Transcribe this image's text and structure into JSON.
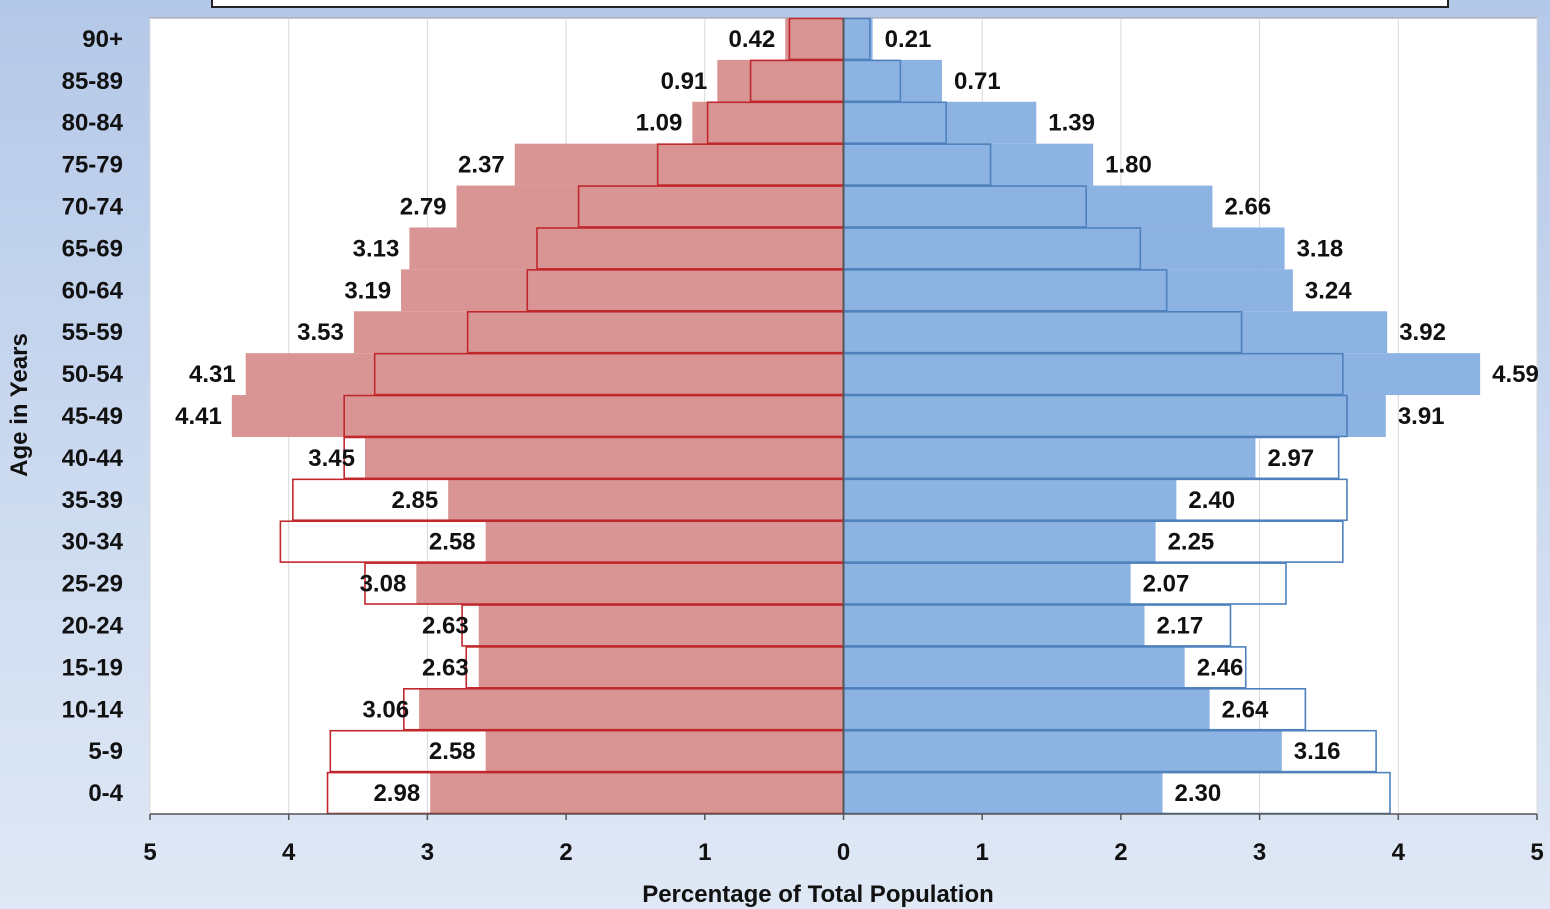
{
  "chart_data": {
    "type": "bar",
    "title": "",
    "ylabel": "Age in Years",
    "xlabel": "Percentage of Total Population",
    "xlim": [
      -5,
      5
    ],
    "x_ticks": [
      -5,
      -4,
      -3,
      -2,
      -1,
      0,
      1,
      2,
      3,
      4,
      5
    ],
    "x_tick_labels": [
      "5",
      "4",
      "3",
      "2",
      "1",
      "0",
      "1",
      "2",
      "3",
      "4",
      "5"
    ],
    "grid": true,
    "legend": "none",
    "categories": [
      "90+",
      "85-89",
      "80-84",
      "75-79",
      "70-74",
      "65-69",
      "60-64",
      "55-59",
      "50-54",
      "45-49",
      "40-44",
      "35-39",
      "30-34",
      "25-29",
      "20-24",
      "15-19",
      "10-14",
      "5-9",
      "0-4"
    ],
    "series": [
      {
        "side": "left",
        "color": "#d99594",
        "outline_color": "#c0282d",
        "values": [
          0.42,
          0.91,
          1.09,
          2.37,
          2.79,
          3.13,
          3.19,
          3.53,
          4.31,
          4.41,
          3.45,
          2.85,
          2.58,
          3.08,
          2.63,
          2.63,
          3.06,
          2.58,
          2.98
        ],
        "value_labels": [
          "0.42",
          "0.91",
          "1.09",
          "2.37",
          "2.79",
          "3.13",
          "3.19",
          "3.53",
          "4.31",
          "4.41",
          "3.45",
          "2.85",
          "2.58",
          "3.08",
          "2.63",
          "2.63",
          "3.06",
          "2.58",
          "2.98"
        ],
        "outline_values": [
          0.39,
          0.67,
          0.98,
          1.34,
          1.91,
          2.21,
          2.28,
          2.71,
          3.38,
          3.6,
          3.6,
          3.97,
          4.06,
          3.45,
          2.75,
          2.72,
          3.17,
          3.7,
          3.72
        ]
      },
      {
        "side": "right",
        "color": "#8db3e2",
        "outline_color": "#4f81bd",
        "values": [
          0.21,
          0.71,
          1.39,
          1.8,
          2.66,
          3.18,
          3.24,
          3.92,
          4.59,
          3.91,
          2.97,
          2.4,
          2.25,
          2.07,
          2.17,
          2.46,
          2.64,
          3.16,
          2.3
        ],
        "value_labels": [
          "0.21",
          "0.71",
          "1.39",
          "1.80",
          "2.66",
          "3.18",
          "3.24",
          "3.92",
          "4.59",
          "3.91",
          "2.97",
          "2.40",
          "2.25",
          "2.07",
          "2.17",
          "2.46",
          "2.64",
          "3.16",
          "2.30"
        ],
        "outline_values": [
          0.19,
          0.41,
          0.74,
          1.06,
          1.75,
          2.14,
          2.33,
          2.87,
          3.6,
          3.63,
          3.57,
          3.63,
          3.6,
          3.19,
          2.79,
          2.9,
          3.33,
          3.84,
          3.94
        ]
      }
    ]
  }
}
